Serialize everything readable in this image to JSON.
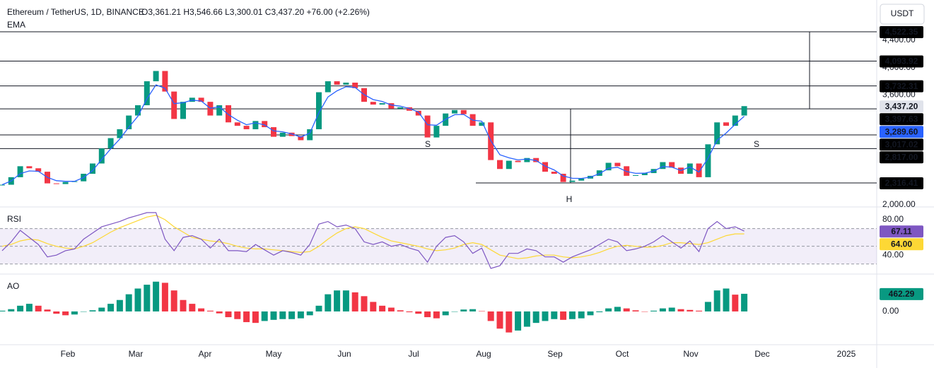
{
  "header": {
    "title": "Ethereum / TetherUS, 1D, BINANCE",
    "ohlc": "O3,361.21 H3,546.66 L3,300.01 C3,437.20 +76.00 (+2.26%)",
    "indicator": "EMA",
    "currency": "USDT",
    "countdown": "06:44:38"
  },
  "chart_data": [
    {
      "type": "candlestick",
      "name": "price",
      "values": [
        2290,
        2400,
        2560,
        2530,
        2480,
        2310,
        2300,
        2330,
        2340,
        2450,
        2600,
        2820,
        2970,
        3100,
        3300,
        3450,
        3800,
        3950,
        3650,
        3250,
        3500,
        3560,
        3500,
        3300,
        3450,
        3200,
        3150,
        3100,
        3220,
        3130,
        2990,
        3050,
        3000,
        2940,
        3100,
        3640,
        3800,
        3750,
        3780,
        3700,
        3500,
        3460,
        3480,
        3400,
        3420,
        3370,
        3300,
        2980,
        3150,
        3330,
        3380,
        3320,
        3150,
        3200,
        2650,
        2520,
        2640,
        2620,
        2680,
        2620,
        2480,
        2450,
        2330,
        2350,
        2380,
        2420,
        2500,
        2610,
        2560,
        2420,
        2430,
        2460,
        2520,
        2620,
        2540,
        2450,
        2600,
        2400,
        2880,
        3200,
        3150,
        3300,
        3437.2
      ],
      "ema": {
        "name": "EMA",
        "color": "#2962ff",
        "values": [
          2290,
          2345,
          2452,
          2491,
          2486,
          2398,
          2349,
          2340,
          2340,
          2395,
          2497,
          2659,
          2814,
          2957,
          3129,
          3289,
          3545,
          3747,
          3699,
          3474,
          3487,
          3524,
          3512,
          3406,
          3428,
          3314,
          3232,
          3166,
          3193,
          3162,
          3076,
          3063,
          3032,
          2986,
          3043,
          3341,
          3571,
          3660,
          3720,
          3710,
          3605,
          3533,
          3506,
          3453,
          3437,
          3403,
          3352,
          3166,
          3158,
          3244,
          3312,
          3316,
          3233,
          3217,
          2933,
          2727,
          2683,
          2652,
          2666,
          2643,
          2561,
          2506,
          2418,
          2384,
          2382,
          2401,
          2451,
          2530,
          2545,
          2483,
          2456,
          2458,
          2489,
          2555,
          2547,
          2499,
          2549,
          2475,
          2677,
          2939,
          3044,
          3172,
          3289.6
        ]
      },
      "up_color": "#089981",
      "down_color": "#f23645",
      "ylim": [
        1976,
        4986
      ],
      "yticks": [
        {
          "value": 2000,
          "label": "2,000.00"
        },
        {
          "value": 3600,
          "label": "3,600.00"
        },
        {
          "value": 4000,
          "label": "4,000.00"
        },
        {
          "value": 4400,
          "label": "4,400.00"
        }
      ],
      "levels": [
        {
          "value": 4522.35,
          "label": "4,522.35"
        },
        {
          "value": 4093.92,
          "label": "4,093.92"
        },
        {
          "value": 3732.31,
          "label": "3,732.31"
        },
        {
          "value": 3397.63,
          "label": "3,397.63"
        },
        {
          "value": 3017.02,
          "label": "3,017.02"
        },
        {
          "value": 2817.0,
          "label": "2,817.00"
        },
        {
          "value": 2316.41,
          "label": "2,316.41"
        }
      ],
      "markers": [
        {
          "value": 3437.2,
          "label": "3,437.20",
          "color": "#e0e3eb"
        },
        {
          "value": 3289.6,
          "label": "3,289.60",
          "color": "#2962ff"
        }
      ],
      "annotations": [
        "S",
        "H",
        "S"
      ]
    },
    {
      "type": "line",
      "name": "RSI",
      "series": [
        {
          "name": "RSI",
          "color": "#7e57c2",
          "values": [
            45,
            55,
            68,
            60,
            52,
            38,
            40,
            45,
            47,
            58,
            65,
            72,
            75,
            78,
            82,
            85,
            88,
            88,
            58,
            45,
            60,
            62,
            58,
            48,
            58,
            45,
            45,
            44,
            52,
            46,
            40,
            45,
            43,
            40,
            52,
            75,
            78,
            72,
            74,
            70,
            55,
            52,
            55,
            50,
            52,
            48,
            45,
            32,
            50,
            60,
            62,
            55,
            42,
            48,
            25,
            28,
            42,
            42,
            47,
            45,
            38,
            38,
            32,
            38,
            42,
            46,
            52,
            58,
            55,
            45,
            47,
            50,
            55,
            62,
            55,
            48,
            56,
            44,
            70,
            78,
            70,
            72,
            67.11
          ]
        },
        {
          "color": "#fdd835",
          "values": [
            50,
            52,
            56,
            58,
            57,
            53,
            50,
            48,
            47,
            50,
            54,
            60,
            66,
            71,
            75,
            79,
            83,
            85,
            80,
            72,
            66,
            60,
            58,
            56,
            55,
            53,
            50,
            48,
            47,
            47,
            46,
            45,
            44,
            43,
            44,
            50,
            58,
            65,
            70,
            72,
            70,
            65,
            60,
            56,
            54,
            52,
            50,
            47,
            45,
            46,
            48,
            52,
            54,
            52,
            46,
            40,
            38,
            36,
            37,
            39,
            40,
            40,
            38,
            37,
            38,
            40,
            43,
            47,
            50,
            51,
            50,
            49,
            49,
            51,
            54,
            54,
            53,
            52,
            54,
            58,
            62,
            64,
            64
          ]
        }
      ],
      "band": [
        30,
        70
      ],
      "midline": 50,
      "ylim": [
        25,
        92
      ],
      "yticks": [
        {
          "value": 80,
          "label": "80.00"
        },
        {
          "value": 40,
          "label": "40.00"
        }
      ],
      "markers": [
        {
          "value": 67.11,
          "label": "67.11",
          "color": "#7e57c2"
        },
        {
          "value": 64,
          "label": "64.00",
          "color": "#fdd835"
        }
      ]
    },
    {
      "type": "bar",
      "name": "AO",
      "values": [
        20,
        60,
        150,
        200,
        150,
        50,
        -60,
        -100,
        -80,
        0,
        30,
        100,
        200,
        300,
        450,
        600,
        700,
        780,
        750,
        550,
        300,
        200,
        80,
        20,
        -50,
        -150,
        -200,
        -280,
        -300,
        -250,
        -220,
        -200,
        -200,
        -180,
        -100,
        150,
        450,
        550,
        550,
        500,
        400,
        250,
        150,
        100,
        30,
        -20,
        -60,
        -150,
        -180,
        -100,
        0,
        50,
        60,
        10,
        -250,
        -450,
        -550,
        -500,
        -400,
        -300,
        -250,
        -200,
        -220,
        -200,
        -180,
        -100,
        -20,
        80,
        120,
        80,
        30,
        0,
        20,
        80,
        100,
        60,
        40,
        20,
        250,
        550,
        600,
        440,
        462.29
      ],
      "up_color": "#089981",
      "down_color": "#f23645",
      "ylim": [
        -815,
        905
      ],
      "yticks": [
        {
          "value": 0,
          "label": "0.00"
        }
      ],
      "markers": [
        {
          "value": 462.29,
          "label": "462.29",
          "color": "#089981"
        }
      ],
      "month_labels": [
        "Feb",
        "Mar",
        "Apr",
        "May",
        "Jun",
        "Jul",
        "Aug",
        "Sep",
        "Oct",
        "Nov",
        "Dec",
        "2025"
      ]
    }
  ]
}
